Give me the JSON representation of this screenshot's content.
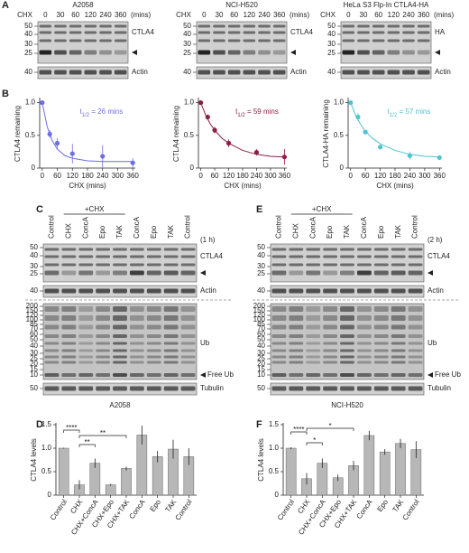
{
  "panel_labels": [
    "A",
    "B",
    "C",
    "D",
    "E",
    "F"
  ],
  "panel_a": [
    {
      "title": "A2058",
      "title_color": "#6d6de6",
      "treatment": "CHX",
      "times": [
        "0",
        "30",
        "60",
        "120",
        "240",
        "360"
      ],
      "unit": "(mins)",
      "markers": [
        "50",
        "40",
        "30",
        "25"
      ],
      "actin_marker": "40",
      "band_label": "CTLA4",
      "loading_label": "Actin"
    },
    {
      "title": "NCI-H520",
      "title_color": "#8c1f45",
      "treatment": "CHX",
      "times": [
        "0",
        "30",
        "60",
        "120",
        "240",
        "360"
      ],
      "unit": "(mins)",
      "markers": [
        "50",
        "40",
        "30",
        "25"
      ],
      "actin_marker": "40",
      "band_label": "CTLA4",
      "loading_label": "Actin"
    },
    {
      "title": "HeLa S3 Flp-In CTLA4-HA",
      "title_color": "#4fc3cf",
      "treatment": "CHX",
      "times": [
        "0",
        "30",
        "60",
        "120",
        "240",
        "360"
      ],
      "unit": "(mins)",
      "markers": [
        "50",
        "40",
        "30",
        "25"
      ],
      "actin_marker": "40",
      "band_label": "HA",
      "loading_label": "Actin"
    }
  ],
  "panel_ce": [
    {
      "lanes": [
        "Control",
        "CHX",
        "ConcA",
        "Epo",
        "TAK",
        "ConcA",
        "Epo",
        "TAK",
        "Control"
      ],
      "combo": "+CHX",
      "duration": "(1 h)",
      "ctla4_markers": [
        "50",
        "40",
        "30",
        "25"
      ],
      "actin_marker": "40",
      "ub_markers": [
        "200",
        "150",
        "120",
        "100",
        "85",
        "70",
        "60",
        "50",
        "40",
        "30",
        "25",
        "20",
        "15",
        "10"
      ],
      "tubulin_marker": "50",
      "ctla4": "CTLA4",
      "actin": "Actin",
      "ub": "Ub",
      "free_ub": "Free Ub",
      "tubulin": "Tubulin",
      "cell_line": "A2058",
      "cell_color": "#6d6de6"
    },
    {
      "lanes": [
        "Control",
        "CHX",
        "ConcA",
        "Epo",
        "TAK",
        "ConcA",
        "Epo",
        "TAK",
        "Control"
      ],
      "combo": "+CHX",
      "duration": "(2 h)",
      "ctla4_markers": [
        "50",
        "40",
        "30",
        "25"
      ],
      "actin_marker": "40",
      "ub_markers": [
        "200",
        "150",
        "120",
        "100",
        "85",
        "70",
        "60",
        "50",
        "40",
        "30",
        "25",
        "20",
        "15",
        "10"
      ],
      "tubulin_marker": "50",
      "ctla4": "CTLA4",
      "actin": "Actin",
      "ub": "Ub",
      "free_ub": "Free Ub",
      "tubulin": "Tubulin",
      "cell_line": "NCI-H520",
      "cell_color": "#8c1f45"
    }
  ],
  "chart_data": [
    {
      "type": "line",
      "ylabel": "CTLA4 remaining",
      "xlabel": "CHX (mins)",
      "xlim": [
        -10,
        370
      ],
      "xticks": [
        0,
        60,
        120,
        180,
        240,
        300,
        360
      ],
      "ylim": [
        0,
        1.05
      ],
      "yticks": [
        0,
        0.5,
        {
          "value": 1,
          "label": "1.0"
        }
      ],
      "annotation": {
        "t": "t",
        "sub": "1/2",
        "text": " = 26 mins"
      },
      "series": [
        {
          "color": "#6d6de6",
          "x": [
            0,
            30,
            60,
            120,
            240,
            360
          ],
          "values": [
            1,
            0.52,
            0.38,
            0.22,
            0.18,
            0.08
          ],
          "errors": [
            0.02,
            0.06,
            0.08,
            0.15,
            0.17,
            0.07
          ]
        },
        {
          "color": "#6d6de6",
          "x": [
            0,
            20,
            40,
            60,
            90,
            120,
            180,
            240,
            300,
            360
          ],
          "values": [
            1,
            0.63,
            0.42,
            0.29,
            0.19,
            0.15,
            0.11,
            0.1,
            0.1,
            0.1
          ]
        }
      ]
    },
    {
      "type": "line",
      "ylabel": "CTLA4 remaining",
      "xlabel": "CHX (mins)",
      "xlim": [
        -10,
        370
      ],
      "xticks": [
        0,
        60,
        120,
        180,
        240,
        300,
        360
      ],
      "ylim": [
        0,
        1.05
      ],
      "yticks": [
        0,
        0.5,
        {
          "value": 1,
          "label": "1.0"
        }
      ],
      "annotation": {
        "t": "t",
        "sub": "1/2",
        "text": " = 59 mins"
      },
      "series": [
        {
          "color": "#8c1f45",
          "x": [
            0,
            30,
            60,
            120,
            240,
            360
          ],
          "values": [
            1,
            0.78,
            0.58,
            0.38,
            0.24,
            0.17
          ],
          "errors": [
            0.01,
            0.04,
            0.05,
            0.06,
            0.05,
            0.12
          ]
        },
        {
          "color": "#8c1f45",
          "x": [
            0,
            20,
            40,
            60,
            90,
            120,
            180,
            240,
            300,
            360
          ],
          "values": [
            1,
            0.82,
            0.68,
            0.58,
            0.46,
            0.38,
            0.27,
            0.21,
            0.18,
            0.17
          ]
        }
      ]
    },
    {
      "type": "line",
      "ylabel": "CTLA4-HA remaining",
      "xlabel": "CHX (mins)",
      "xlim": [
        -10,
        370
      ],
      "xticks": [
        0,
        60,
        120,
        180,
        240,
        300,
        360
      ],
      "ylim": [
        0,
        1.05
      ],
      "yticks": [
        0,
        0.5,
        {
          "value": 1,
          "label": "1.0"
        }
      ],
      "annotation": {
        "t": "t",
        "sub": "1/2",
        "text": " = 57 mins"
      },
      "series": [
        {
          "color": "#4fc3cf",
          "x": [
            0,
            30,
            60,
            120,
            240,
            360
          ],
          "values": [
            1,
            0.78,
            0.55,
            0.32,
            0.19,
            0.16
          ],
          "errors": [
            0.02,
            0.06,
            0.03,
            0.02,
            0.06,
            0.03
          ]
        },
        {
          "color": "#4fc3cf",
          "x": [
            0,
            20,
            40,
            60,
            90,
            120,
            180,
            240,
            300,
            360
          ],
          "values": [
            1,
            0.81,
            0.67,
            0.56,
            0.45,
            0.37,
            0.27,
            0.21,
            0.18,
            0.17
          ]
        }
      ]
    },
    {
      "type": "bar",
      "ylabel": "CTLA4 levels",
      "color": "#b7b7b7",
      "categories": [
        "Control",
        "CHX",
        "CHX+ConcA",
        "CHX+Epo",
        "CHX+TAK",
        "ConcA",
        "Epo",
        "TAK",
        "Control"
      ],
      "values": [
        1,
        0.22,
        0.68,
        0.22,
        0.57,
        1.28,
        0.82,
        0.98,
        0.82
      ],
      "errors": [
        0.01,
        0.1,
        0.1,
        0.02,
        0.04,
        0.2,
        0.12,
        0.2,
        0.18
      ],
      "ylim": [
        0,
        1.5
      ],
      "yticks": [
        0,
        0.5,
        {
          "value": 1,
          "label": "1.0"
        },
        1.5
      ],
      "significance": [
        "****",
        "**",
        "**"
      ]
    },
    {
      "type": "bar",
      "ylabel": "CTLA4 levels",
      "color": "#b7b7b7",
      "categories": [
        "Control",
        "CHX",
        "CHX+ConcA",
        "CHX+Epo",
        "CHX+TAK",
        "ConcA",
        "Epo",
        "TAK",
        "Control"
      ],
      "values": [
        1,
        0.35,
        0.68,
        0.37,
        0.63,
        1.27,
        0.92,
        1.1,
        0.97
      ],
      "errors": [
        0.02,
        0.12,
        0.1,
        0.07,
        0.1,
        0.1,
        0.06,
        0.1,
        0.18
      ],
      "ylim": [
        0,
        1.5
      ],
      "yticks": [
        0,
        0.5,
        {
          "value": 1,
          "label": "1.0"
        },
        1.5
      ],
      "significance": [
        "****",
        "*",
        "*"
      ]
    }
  ]
}
